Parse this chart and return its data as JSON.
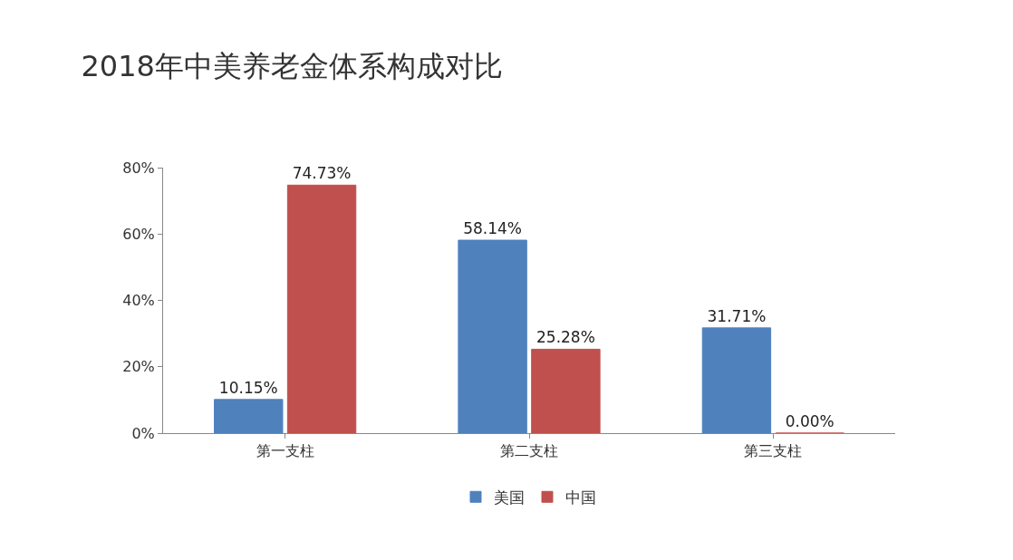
{
  "chart_data": {
    "type": "bar",
    "title": "2018年中美养老金体系构成对比",
    "categories": [
      "第一支柱",
      "第二支柱",
      "第三支柱"
    ],
    "series": [
      {
        "name": "美国",
        "color": "#4f81bd",
        "values": [
          10.15,
          58.14,
          31.71
        ],
        "value_labels": [
          "10.15%",
          "58.14%",
          "31.71%"
        ]
      },
      {
        "name": "中国",
        "color": "#c0504d",
        "values": [
          74.73,
          25.28,
          0.0
        ],
        "value_labels": [
          "74.73%",
          "25.28%",
          "0.00%"
        ]
      }
    ],
    "ylim": [
      0,
      80
    ],
    "yticks": [
      {
        "value": 0,
        "label": "0%"
      },
      {
        "value": 20,
        "label": "20%"
      },
      {
        "value": 40,
        "label": "40%"
      },
      {
        "value": 60,
        "label": "60%"
      },
      {
        "value": 80,
        "label": "80%"
      }
    ],
    "grid": false,
    "legend": "bottom"
  }
}
